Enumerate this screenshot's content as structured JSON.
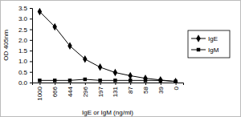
{
  "chart_data": {
    "type": "line",
    "x_label": "IgE or IgM  (ng/ml)",
    "y_label": "OD 405nm",
    "categories": [
      "1000",
      "666",
      "444",
      "296",
      "197",
      "131",
      "87",
      "58",
      "39",
      "0"
    ],
    "series": [
      {
        "name": "IgE",
        "color": "#000000",
        "marker": "diamond",
        "values": [
          3.33,
          2.62,
          1.72,
          1.1,
          0.72,
          0.47,
          0.32,
          0.2,
          0.12,
          0.05
        ]
      },
      {
        "name": "IgM",
        "color": "#000000",
        "marker": "square",
        "values": [
          0.1,
          0.1,
          0.1,
          0.15,
          0.1,
          0.1,
          0.1,
          0.1,
          0.1,
          0.05
        ]
      }
    ],
    "ylim": [
      0,
      3.5
    ],
    "yticks": [
      {
        "value": 0,
        "label": "0.0"
      },
      {
        "value": 0.5,
        "label": "0.5"
      },
      {
        "value": 1,
        "label": "1.0"
      },
      {
        "value": 1.5,
        "label": "1.5"
      },
      {
        "value": 2,
        "label": "2.0"
      },
      {
        "value": 2.5,
        "label": "2.5"
      },
      {
        "value": 3,
        "label": "3.0"
      },
      {
        "value": 3.5,
        "label": "3.5"
      }
    ],
    "legend": "right",
    "grid": false
  }
}
